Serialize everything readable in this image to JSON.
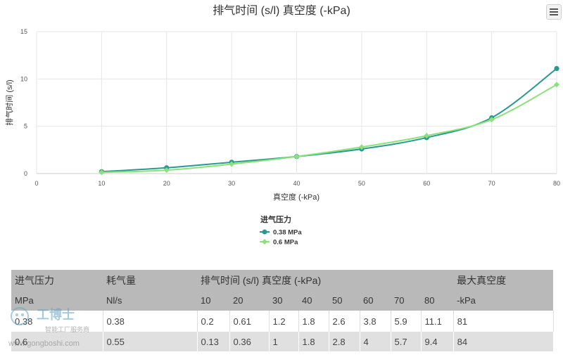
{
  "menu": {
    "icon": "hamburger-menu-icon"
  },
  "chart_data": {
    "type": "line",
    "title": "排气时间 (s/l) 真空度 (-kPa)",
    "xlabel": "真空度 (-kPa)",
    "ylabel": "排气时间 (s/l)",
    "xlim": [
      0,
      80
    ],
    "ylim": [
      0,
      15
    ],
    "x_ticks": [
      0,
      10,
      20,
      30,
      40,
      50,
      60,
      70,
      80
    ],
    "y_ticks": [
      0,
      5,
      10,
      15
    ],
    "grid": true,
    "legend_title": "进气压力",
    "legend_placement": "bottom-center",
    "x": [
      10,
      20,
      30,
      40,
      50,
      60,
      70,
      80
    ],
    "series": [
      {
        "name": "0.38 MPa",
        "color": "#2a9a8f",
        "marker": "circle",
        "values": [
          0.2,
          0.61,
          1.2,
          1.8,
          2.6,
          3.8,
          5.9,
          11.1
        ]
      },
      {
        "name": "0.6 MPa",
        "color": "#8be17a",
        "marker": "diamond",
        "values": [
          0.13,
          0.36,
          1,
          1.8,
          2.8,
          4,
          5.7,
          9.4
        ]
      }
    ]
  },
  "table": {
    "header1": {
      "pressure": "进气压力",
      "consumption": "耗气量",
      "time": "排气时间 (s/l) 真空度 (-kPa)",
      "max_vacuum": "最大真空度"
    },
    "header2": {
      "pressure_unit": "MPa",
      "consumption_unit": "Nl/s",
      "time_cols": [
        "10",
        "20",
        "30",
        "40",
        "50",
        "60",
        "70",
        "80"
      ],
      "max_vacuum_unit": "-kPa"
    },
    "rows": [
      {
        "pressure": "0.38",
        "consumption": "0.38",
        "times": [
          "0.2",
          "0.61",
          "1.2",
          "1.8",
          "2.6",
          "3.8",
          "5.9",
          "11.1"
        ],
        "max_vacuum": "81"
      },
      {
        "pressure": "0.6",
        "consumption": "0.55",
        "times": [
          "0.13",
          "0.36",
          "1",
          "1.8",
          "2.8",
          "4",
          "5.7",
          "9.4"
        ],
        "max_vacuum": "84"
      }
    ]
  },
  "watermark": {
    "brand": "工博士",
    "tagline": "智能工厂服务商",
    "url": "www.gongboshi.com"
  }
}
